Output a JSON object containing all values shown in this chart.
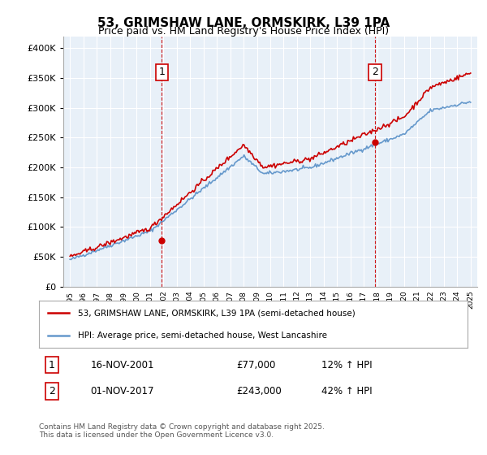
{
  "title": "53, GRIMSHAW LANE, ORMSKIRK, L39 1PA",
  "subtitle": "Price paid vs. HM Land Registry's House Price Index (HPI)",
  "legend_line1": "53, GRIMSHAW LANE, ORMSKIRK, L39 1PA (semi-detached house)",
  "legend_line2": "HPI: Average price, semi-detached house, West Lancashire",
  "footer": "Contains HM Land Registry data © Crown copyright and database right 2025.\nThis data is licensed under the Open Government Licence v3.0.",
  "annotation1": {
    "label": "1",
    "date": "16-NOV-2001",
    "price": "£77,000",
    "hpi": "12% ↑ HPI",
    "x_year": 2001.87,
    "y_val": 77000
  },
  "annotation2": {
    "label": "2",
    "date": "01-NOV-2017",
    "price": "£243,000",
    "hpi": "42% ↑ HPI",
    "x_year": 2017.83,
    "y_val": 243000
  },
  "vline1_x": 2001.87,
  "vline2_x": 2017.83,
  "property_color": "#cc0000",
  "hpi_color": "#6699cc",
  "background_color": "#e8f0f8",
  "ylim": [
    0,
    420000
  ],
  "xlim": [
    1994.5,
    2025.5
  ],
  "yticks": [
    0,
    50000,
    100000,
    150000,
    200000,
    250000,
    300000,
    350000,
    400000
  ],
  "xticks": [
    1995,
    1996,
    1997,
    1998,
    1999,
    2000,
    2001,
    2002,
    2003,
    2004,
    2005,
    2006,
    2007,
    2008,
    2009,
    2010,
    2011,
    2012,
    2013,
    2014,
    2015,
    2016,
    2017,
    2018,
    2019,
    2020,
    2021,
    2022,
    2023,
    2024,
    2025
  ]
}
